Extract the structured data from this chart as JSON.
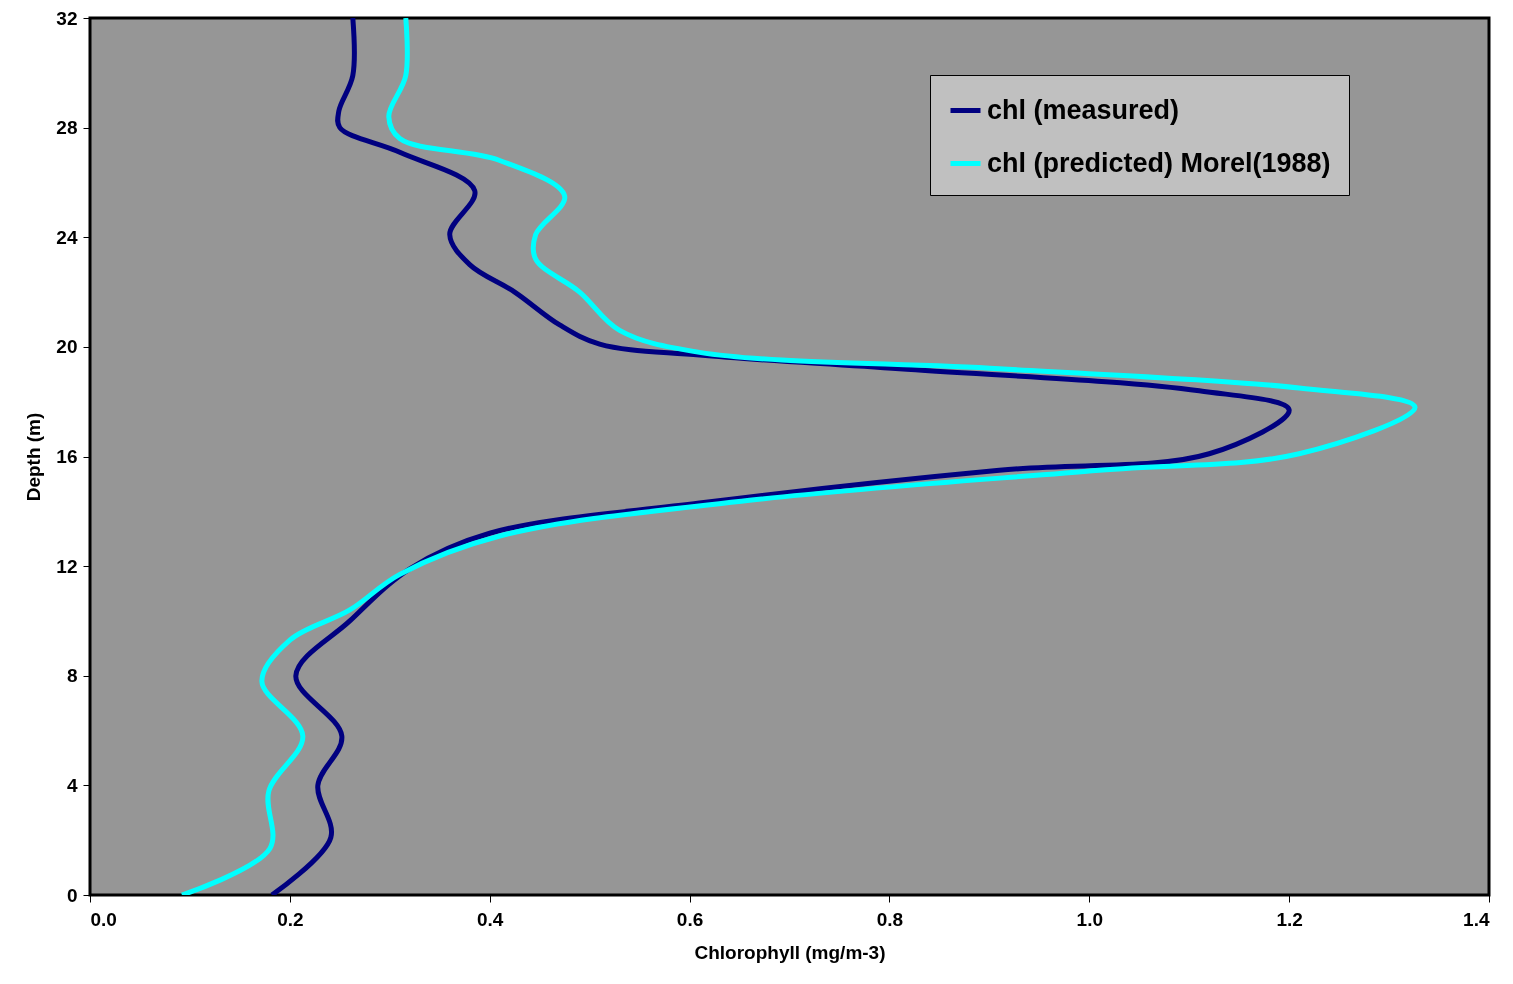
{
  "chart_data": {
    "type": "line",
    "xlabel": "Chlorophyll (mg/m-3)",
    "ylabel": "Depth (m)",
    "xlim": [
      0,
      1.4
    ],
    "xticks": [
      {
        "value": 0,
        "label": "0.0"
      },
      0.2,
      0.4,
      0.6,
      0.8,
      {
        "value": 1,
        "label": "1.0"
      },
      1.2,
      1.4
    ],
    "ylim": [
      0,
      32
    ],
    "yticks": [
      0,
      4,
      8,
      12,
      16,
      20,
      24,
      28,
      32
    ],
    "grid": false,
    "legend": "top right",
    "series": [
      {
        "name": "chl (measured)",
        "color": "#000080",
        "x": [
          0.182,
          0.241,
          0.228,
          0.252,
          0.206,
          0.26,
          0.32,
          0.4,
          0.61,
          0.91,
          1.12,
          1.2,
          1.11,
          0.81,
          0.61,
          0.51,
          0.47,
          0.425,
          0.38,
          0.36,
          0.385,
          0.31,
          0.25,
          0.249,
          0.263,
          0.263
        ],
        "values": [
          0,
          2.1,
          4,
          5.8,
          8,
          10,
          11.9,
          13.2,
          14.3,
          15.5,
          16.1,
          17.7,
          18.4,
          19.2,
          19.7,
          20.1,
          20.8,
          22,
          23,
          24.1,
          25.7,
          27.1,
          28,
          28.6,
          29.9,
          32
        ]
      },
      {
        "name": "chl (predicted) Morel(1988)",
        "color": "#00ffff",
        "x": [
          0.092,
          0.18,
          0.179,
          0.213,
          0.172,
          0.2,
          0.26,
          0.31,
          0.41,
          0.66,
          1.01,
          1.21,
          1.326,
          1.21,
          0.91,
          0.61,
          0.53,
          0.49,
          0.446,
          0.446,
          0.475,
          0.41,
          0.31,
          0.299,
          0.316,
          0.316
        ],
        "values": [
          0,
          1.7,
          3.8,
          5.8,
          7.8,
          9.3,
          10.4,
          11.7,
          13.1,
          14.4,
          15.5,
          16.1,
          17.8,
          18.5,
          19.2,
          19.8,
          20.6,
          22,
          23.2,
          24.1,
          25.5,
          26.8,
          27.6,
          28.4,
          29.9,
          32
        ]
      }
    ]
  }
}
